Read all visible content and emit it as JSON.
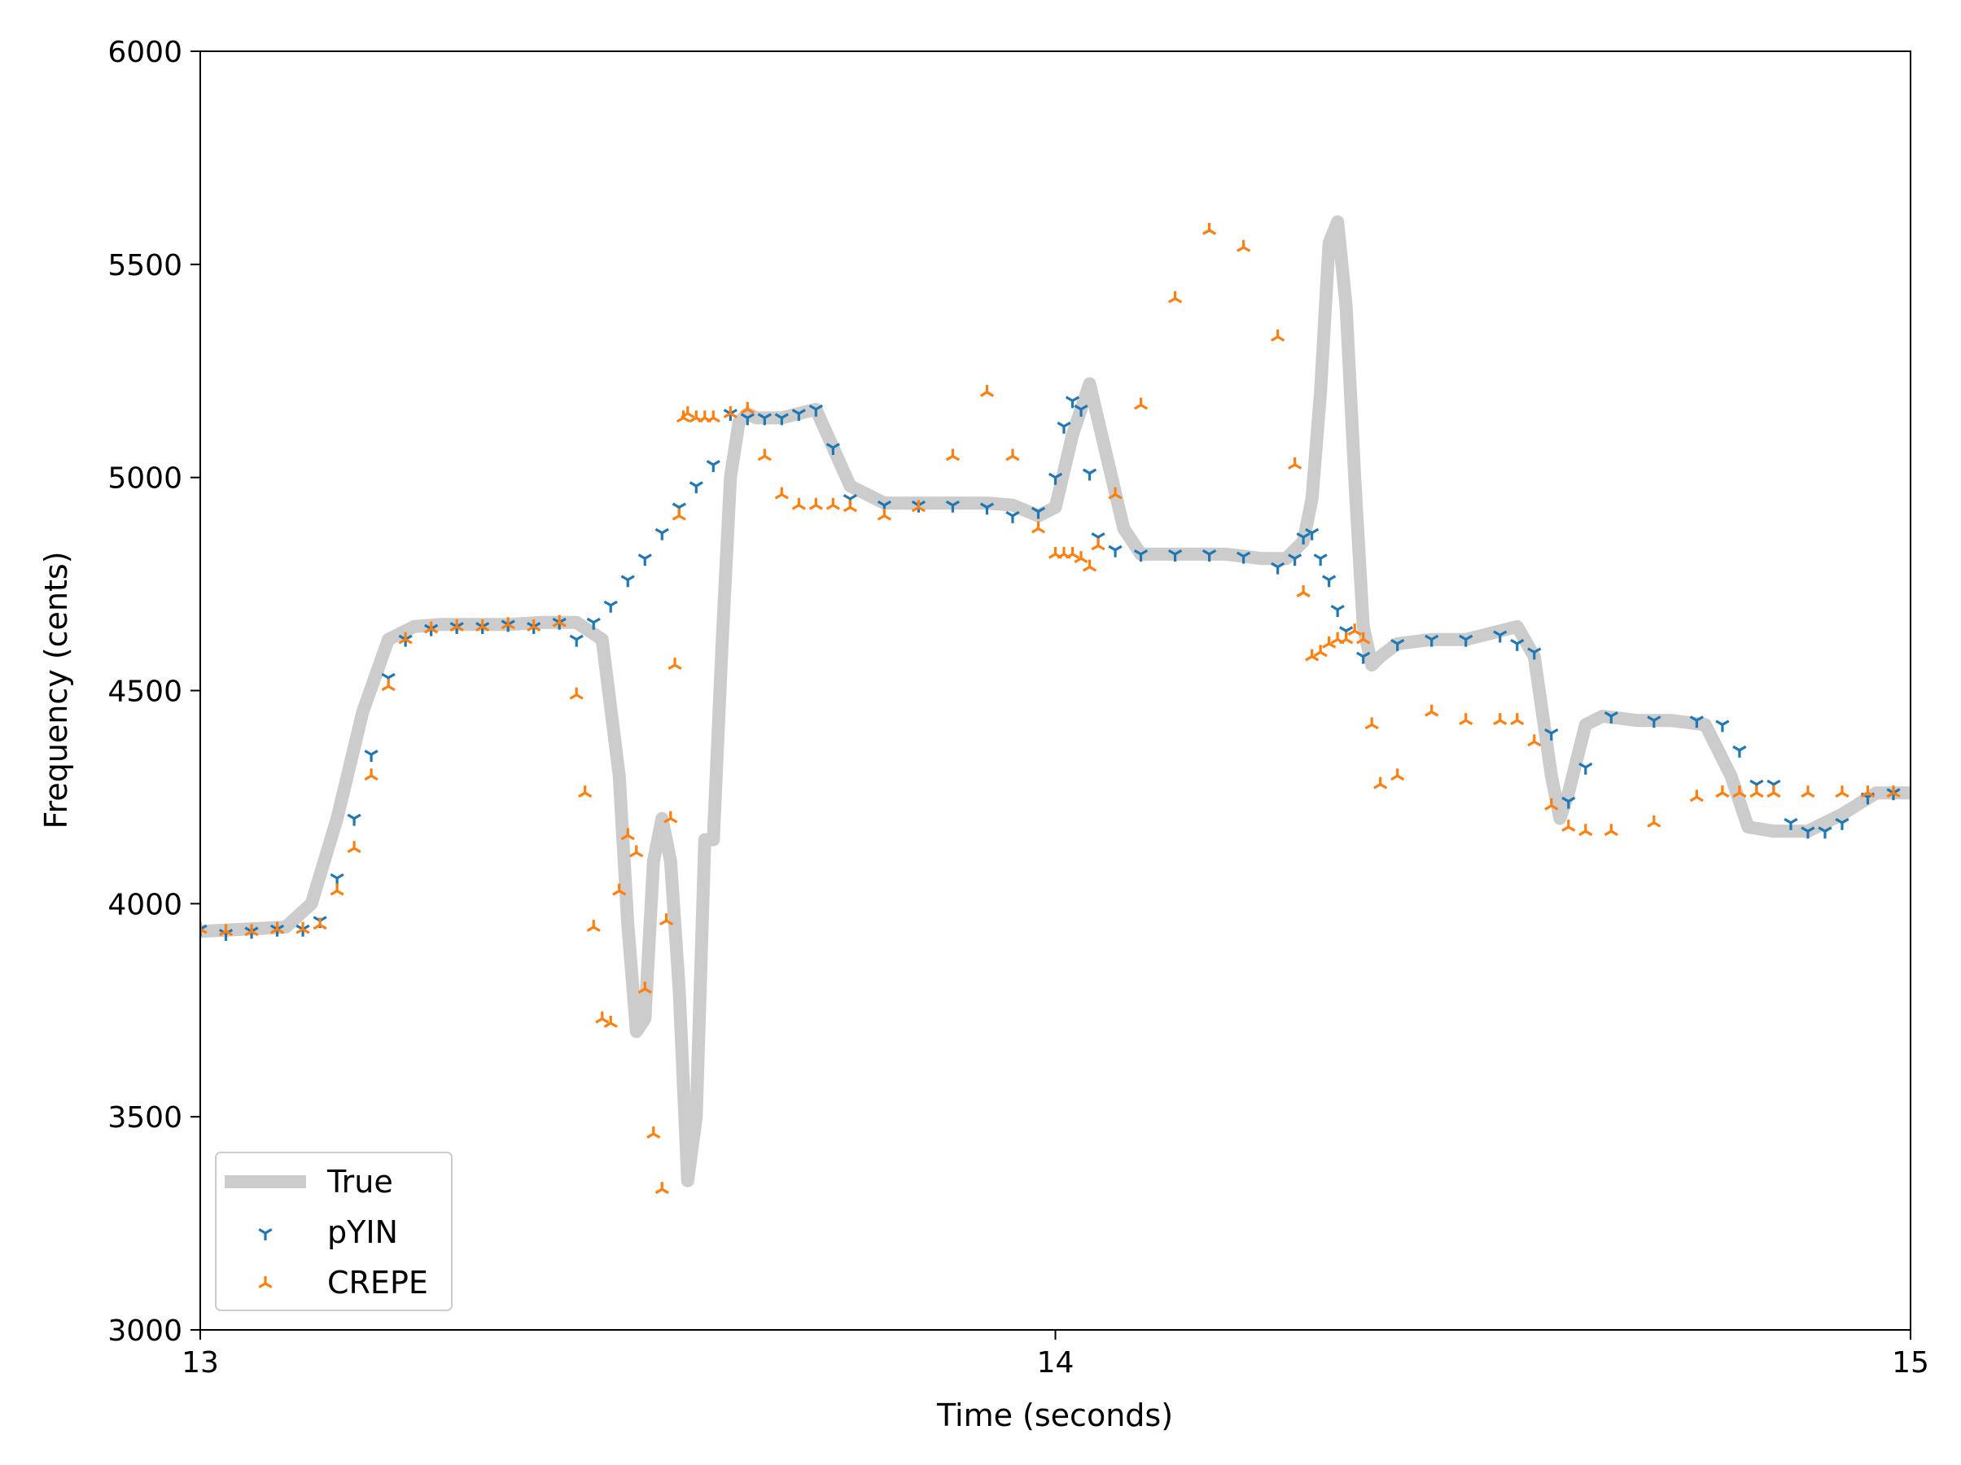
{
  "chart_data": {
    "type": "line",
    "title": "",
    "xlabel": "Time (seconds)",
    "ylabel": "Frequency (cents)",
    "xlim": [
      13,
      15
    ],
    "ylim": [
      3000,
      6000
    ],
    "xticks": [
      13,
      14,
      15
    ],
    "yticks": [
      3000,
      3500,
      4000,
      4500,
      5000,
      5500,
      6000
    ],
    "grid": false,
    "legend_position": "lower-left",
    "colors": {
      "True": "#cccccc",
      "pYIN": "#1f77b4",
      "CREPE": "#ff7f0e"
    },
    "series": [
      {
        "name": "True",
        "style": "line",
        "x": [
          13.0,
          13.05,
          13.1,
          13.13,
          13.16,
          13.19,
          13.22,
          13.25,
          13.28,
          13.32,
          13.36,
          13.4,
          13.44,
          13.47,
          13.49,
          13.5,
          13.51,
          13.52,
          13.53,
          13.54,
          13.55,
          13.56,
          13.57,
          13.58,
          13.59,
          13.6,
          13.61,
          13.62,
          13.63,
          13.64,
          13.65,
          13.66,
          13.67,
          13.68,
          13.7,
          13.72,
          13.76,
          13.8,
          13.84,
          13.88,
          13.92,
          13.95,
          13.98,
          14.0,
          14.02,
          14.04,
          14.06,
          14.08,
          14.1,
          14.12,
          14.16,
          14.2,
          14.24,
          14.27,
          14.29,
          14.3,
          14.31,
          14.32,
          14.33,
          14.34,
          14.35,
          14.36,
          14.37,
          14.38,
          14.4,
          14.44,
          14.48,
          14.52,
          14.54,
          14.56,
          14.58,
          14.59,
          14.6,
          14.62,
          14.64,
          14.68,
          14.72,
          14.76,
          14.79,
          14.81,
          14.84,
          14.88,
          14.92,
          14.96,
          15.0
        ],
        "y": [
          3935,
          3940,
          3945,
          4000,
          4200,
          4450,
          4620,
          4650,
          4655,
          4655,
          4655,
          4660,
          4660,
          4620,
          4300,
          3950,
          3700,
          3730,
          4100,
          4200,
          4100,
          3800,
          3350,
          3500,
          4150,
          4150,
          4600,
          5000,
          5130,
          5150,
          5140,
          5140,
          5140,
          5140,
          5150,
          5160,
          4980,
          4940,
          4940,
          4940,
          4940,
          4935,
          4910,
          4930,
          5100,
          5220,
          5050,
          4880,
          4820,
          4820,
          4820,
          4820,
          4810,
          4810,
          4850,
          4950,
          5200,
          5550,
          5600,
          5400,
          5000,
          4650,
          4560,
          4580,
          4610,
          4620,
          4620,
          4640,
          4650,
          4580,
          4300,
          4200,
          4260,
          4420,
          4440,
          4430,
          4430,
          4420,
          4300,
          4180,
          4170,
          4170,
          4210,
          4260,
          4260
        ]
      },
      {
        "name": "pYIN",
        "style": "markers",
        "marker": "tri_down",
        "x": [
          13.0,
          13.03,
          13.06,
          13.09,
          13.12,
          13.14,
          13.16,
          13.18,
          13.2,
          13.22,
          13.24,
          13.27,
          13.3,
          13.33,
          13.36,
          13.39,
          13.42,
          13.44,
          13.46,
          13.48,
          13.5,
          13.52,
          13.54,
          13.56,
          13.58,
          13.6,
          13.62,
          13.64,
          13.66,
          13.68,
          13.7,
          13.72,
          13.74,
          13.76,
          13.8,
          13.84,
          13.88,
          13.92,
          13.95,
          13.98,
          14.0,
          14.01,
          14.02,
          14.03,
          14.04,
          14.05,
          14.07,
          14.1,
          14.14,
          14.18,
          14.22,
          14.26,
          14.28,
          14.29,
          14.3,
          14.31,
          14.32,
          14.33,
          14.34,
          14.36,
          14.4,
          14.44,
          14.48,
          14.52,
          14.54,
          14.56,
          14.58,
          14.6,
          14.62,
          14.65,
          14.7,
          14.75,
          14.78,
          14.8,
          14.82,
          14.84,
          14.86,
          14.88,
          14.9,
          14.92,
          14.95,
          14.98
        ],
        "y": [
          3940,
          3930,
          3935,
          3940,
          3940,
          3960,
          4060,
          4200,
          4350,
          4530,
          4620,
          4645,
          4650,
          4650,
          4655,
          4650,
          4660,
          4620,
          4660,
          4700,
          4760,
          4810,
          4870,
          4930,
          4980,
          5030,
          5150,
          5140,
          5140,
          5140,
          5150,
          5160,
          5070,
          4950,
          4935,
          4935,
          4935,
          4930,
          4910,
          4920,
          5000,
          5120,
          5180,
          5160,
          5010,
          4860,
          4830,
          4820,
          4820,
          4820,
          4815,
          4790,
          4810,
          4860,
          4870,
          4810,
          4760,
          4690,
          4640,
          4580,
          4610,
          4620,
          4620,
          4630,
          4610,
          4590,
          4400,
          4240,
          4320,
          4440,
          4430,
          4430,
          4420,
          4360,
          4280,
          4280,
          4190,
          4170,
          4170,
          4190,
          4250,
          4260
        ]
      },
      {
        "name": "CREPE",
        "style": "markers",
        "marker": "tri_up",
        "x": [
          13.0,
          13.03,
          13.06,
          13.09,
          13.12,
          13.14,
          13.16,
          13.18,
          13.2,
          13.22,
          13.24,
          13.27,
          13.3,
          13.33,
          13.36,
          13.39,
          13.42,
          13.44,
          13.45,
          13.46,
          13.47,
          13.48,
          13.49,
          13.5,
          13.51,
          13.52,
          13.53,
          13.54,
          13.545,
          13.55,
          13.555,
          13.56,
          13.565,
          13.57,
          13.58,
          13.59,
          13.6,
          13.62,
          13.64,
          13.66,
          13.68,
          13.7,
          13.72,
          13.74,
          13.76,
          13.8,
          13.84,
          13.88,
          13.92,
          13.95,
          13.98,
          14.0,
          14.01,
          14.02,
          14.03,
          14.04,
          14.05,
          14.07,
          14.1,
          14.14,
          14.18,
          14.22,
          14.26,
          14.28,
          14.29,
          14.3,
          14.31,
          14.32,
          14.33,
          14.34,
          14.35,
          14.36,
          14.37,
          14.38,
          14.4,
          14.44,
          14.48,
          14.52,
          14.54,
          14.56,
          14.58,
          14.6,
          14.62,
          14.65,
          14.7,
          14.75,
          14.78,
          14.8,
          14.82,
          14.84,
          14.88,
          14.92,
          14.95,
          14.98
        ],
        "y": [
          3940,
          3935,
          3935,
          3940,
          3940,
          3950,
          4030,
          4130,
          4300,
          4510,
          4620,
          4645,
          4650,
          4650,
          4655,
          4650,
          4660,
          4490,
          4260,
          3945,
          3730,
          3720,
          4030,
          4160,
          4120,
          3800,
          3460,
          3330,
          3960,
          4200,
          4560,
          4910,
          5140,
          5150,
          5140,
          5140,
          5140,
          5150,
          5160,
          5050,
          4960,
          4935,
          4935,
          4935,
          4930,
          4910,
          4930,
          5050,
          5200,
          5050,
          4880,
          4820,
          4820,
          4820,
          4810,
          4790,
          4840,
          4960,
          5170,
          5420,
          5580,
          5540,
          5330,
          5030,
          4730,
          4580,
          4590,
          4610,
          4620,
          4620,
          4640,
          4620,
          4420,
          4280,
          4300,
          4450,
          4430,
          4430,
          4430,
          4380,
          4230,
          4180,
          4170,
          4170,
          4190,
          4250,
          4260,
          4260,
          4260,
          4260,
          4260,
          4260,
          4260,
          4260
        ]
      }
    ]
  }
}
